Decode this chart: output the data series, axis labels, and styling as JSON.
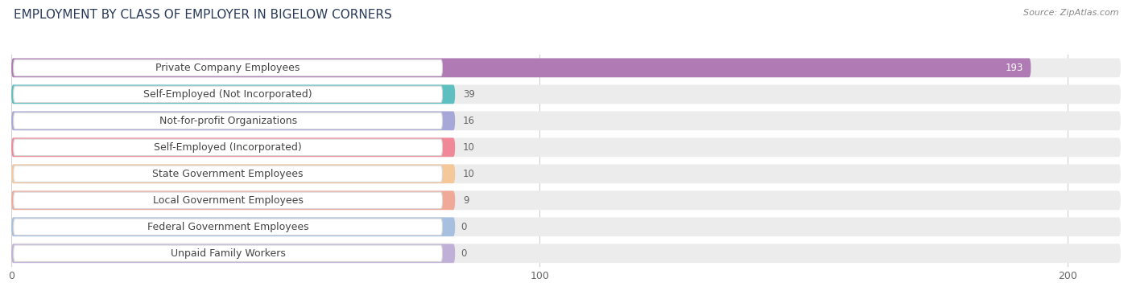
{
  "title": "EMPLOYMENT BY CLASS OF EMPLOYER IN BIGELOW CORNERS",
  "source": "Source: ZipAtlas.com",
  "categories": [
    "Private Company Employees",
    "Self-Employed (Not Incorporated)",
    "Not-for-profit Organizations",
    "Self-Employed (Incorporated)",
    "State Government Employees",
    "Local Government Employees",
    "Federal Government Employees",
    "Unpaid Family Workers"
  ],
  "values": [
    193,
    39,
    16,
    10,
    10,
    9,
    0,
    0
  ],
  "bar_colors": [
    "#b07ab5",
    "#5dbfbf",
    "#a8a8d8",
    "#f08898",
    "#f5c89a",
    "#f0a898",
    "#a8c0e0",
    "#c0b0d8"
  ],
  "xlim": [
    0,
    210
  ],
  "xticks": [
    0,
    100,
    200
  ],
  "background_color": "#ffffff",
  "row_bg_color": "#ececec",
  "label_bg_color": "#ffffff",
  "grid_color": "#d0d0d0",
  "title_fontsize": 11,
  "label_fontsize": 9,
  "value_fontsize": 8.5,
  "title_color": "#2a3a5a",
  "label_color": "#444444",
  "value_color_inside": "#ffffff",
  "value_color_outside": "#666666",
  "source_color": "#888888"
}
